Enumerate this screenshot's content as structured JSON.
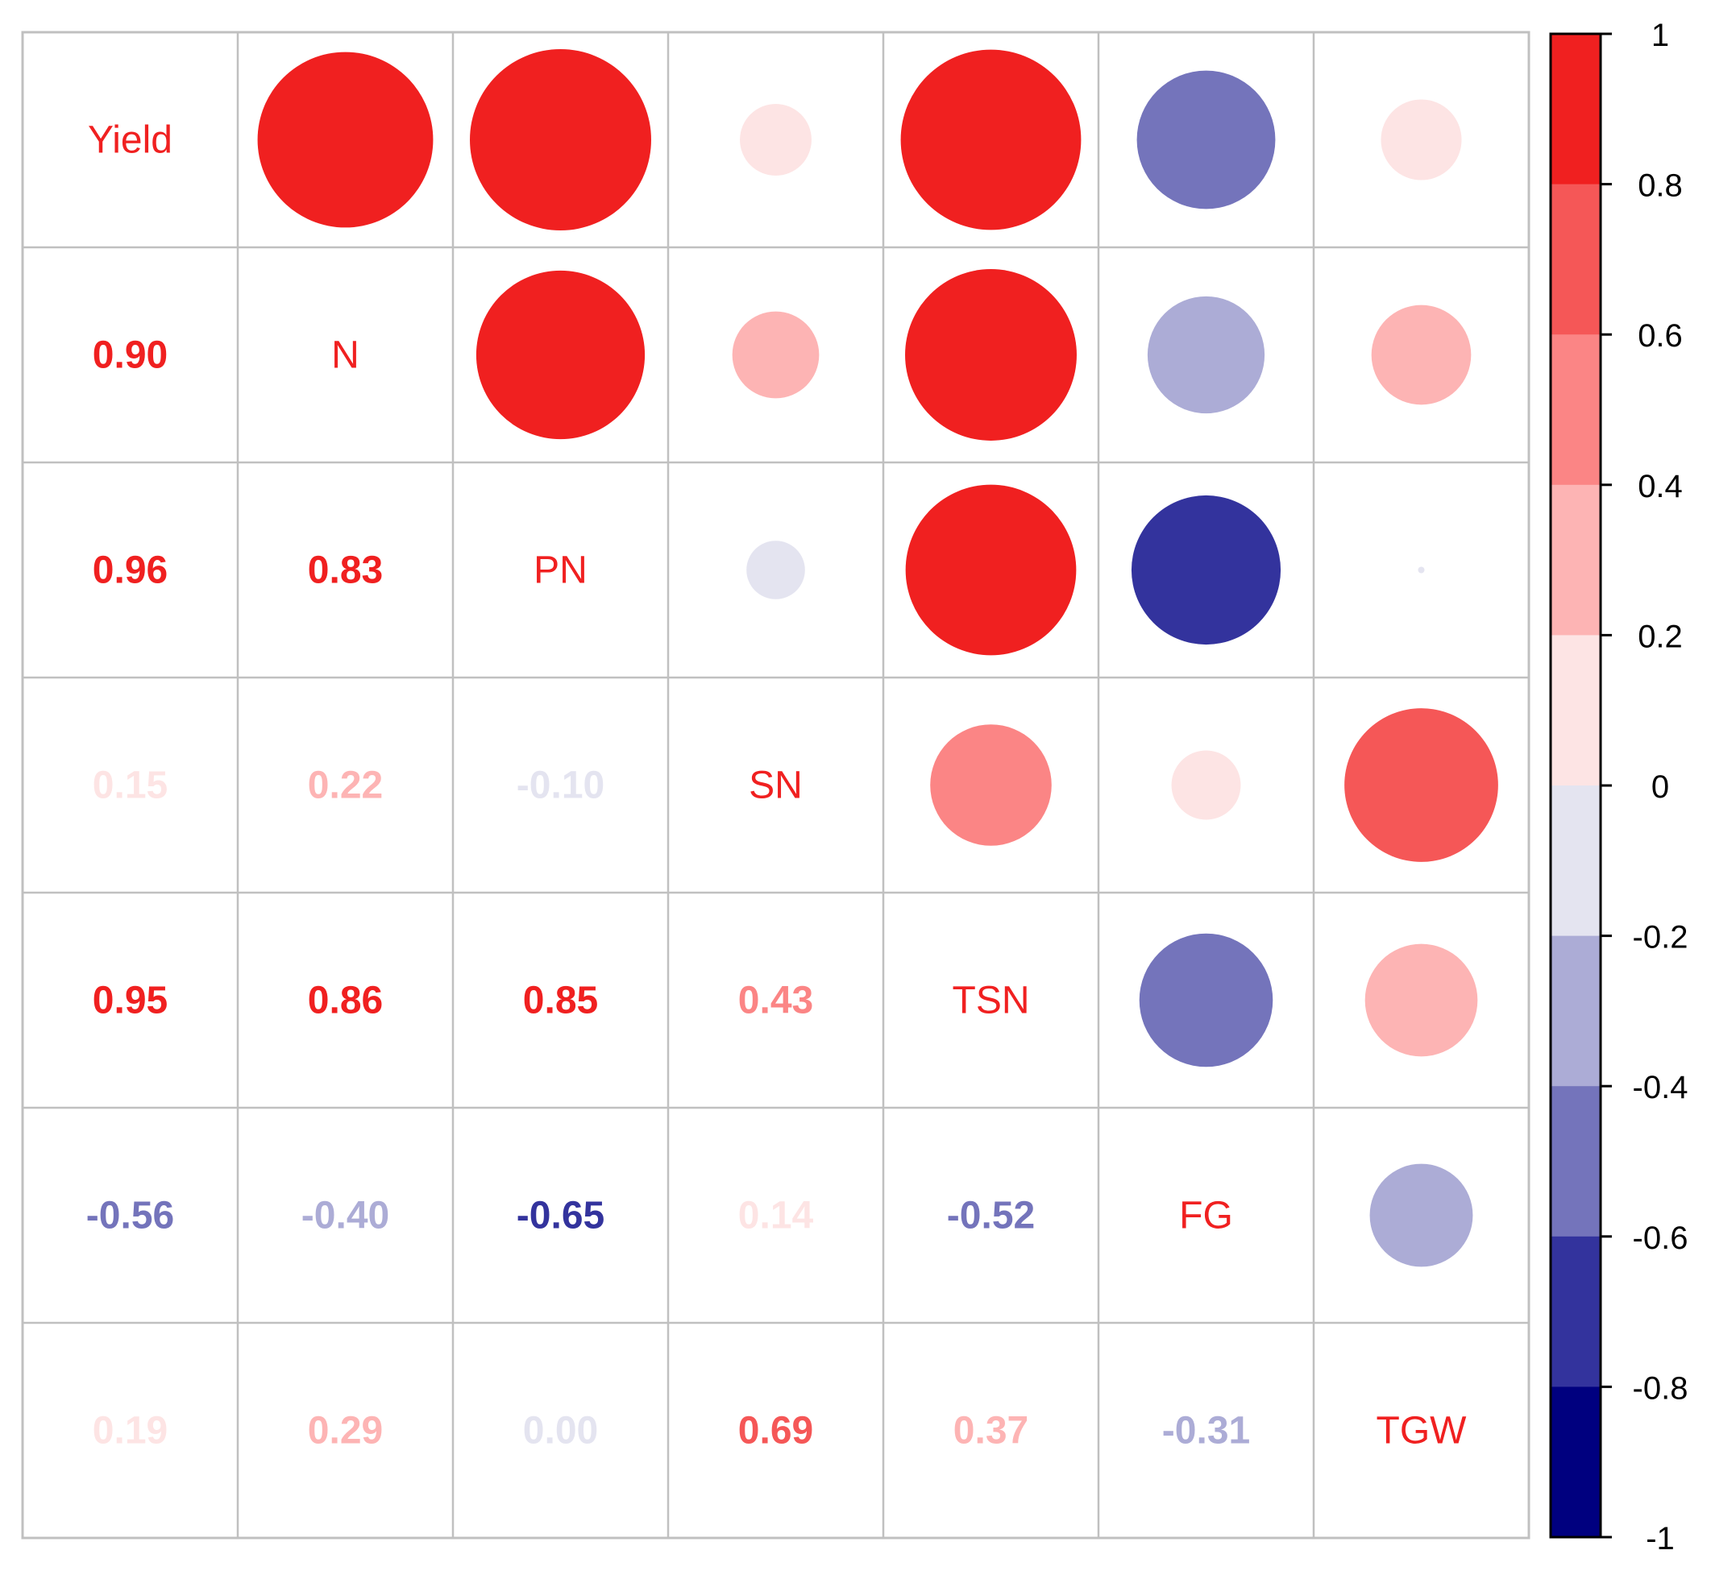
{
  "chart_data": {
    "type": "heatmap",
    "title": "",
    "variables": [
      "Yield",
      "N",
      "PN",
      "SN",
      "TSN",
      "FG",
      "TGW"
    ],
    "correlation_matrix": [
      [
        1.0,
        0.9,
        0.96,
        0.15,
        0.95,
        -0.56,
        0.19
      ],
      [
        0.9,
        1.0,
        0.83,
        0.22,
        0.86,
        -0.4,
        0.29
      ],
      [
        0.96,
        0.83,
        1.0,
        -0.1,
        0.85,
        -0.65,
        0.0
      ],
      [
        0.15,
        0.22,
        -0.1,
        1.0,
        0.43,
        0.14,
        0.69
      ],
      [
        0.95,
        0.86,
        0.85,
        0.43,
        1.0,
        -0.52,
        0.37
      ],
      [
        -0.56,
        -0.4,
        -0.65,
        0.14,
        -0.52,
        1.0,
        -0.31
      ],
      [
        0.19,
        0.29,
        0.0,
        0.69,
        0.37,
        -0.31,
        1.0
      ]
    ],
    "lower_triangle_labels": [
      [
        "0.90"
      ],
      [
        "0.96",
        "0.83"
      ],
      [
        "0.15",
        "0.22",
        "-0.10"
      ],
      [
        "0.95",
        "0.86",
        "0.85",
        "0.43"
      ],
      [
        "-0.56",
        "-0.40",
        "-0.65",
        "0.14",
        "-0.52"
      ],
      [
        "0.19",
        "0.29",
        "0.00",
        "0.69",
        "0.37",
        "-0.31"
      ]
    ],
    "upper_triangle": "circles",
    "lower_triangle": "numbers",
    "diagonal": "variable names",
    "colorbar": {
      "range": [
        -1,
        1
      ],
      "tick_values": [
        1,
        0.8,
        0.6,
        0.4,
        0.2,
        0,
        -0.2,
        -0.4,
        -0.6,
        -0.8,
        -1
      ],
      "tick_labels": [
        "1",
        "0.8",
        "0.6",
        "0.4",
        "0.2",
        "0",
        "-0.2",
        "-0.4",
        "-0.6",
        "-0.8",
        "-1"
      ],
      "bin_colors_top_to_bottom": [
        "#f02020",
        "#f55757",
        "#fb8585",
        "#fdb4b4",
        "#fde4e4",
        "#e4e4f0",
        "#acacd6",
        "#7474bb",
        "#33339d",
        "#00007f"
      ]
    },
    "colors": {
      "diagonal_label": "#f02020",
      "grid": "#c0c0c0"
    }
  }
}
